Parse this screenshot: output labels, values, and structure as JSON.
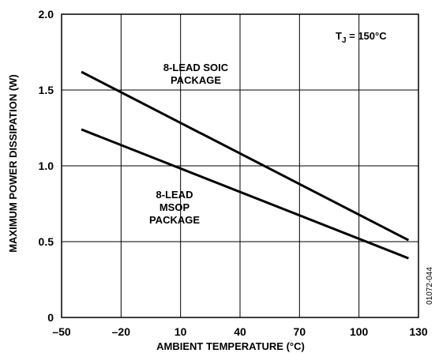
{
  "chart_data": {
    "type": "line",
    "xlabel": "AMBIENT TEMPERATURE (°C)",
    "ylabel": "MAXIMUM POWER DISSIPATION (W)",
    "xlim": [
      -50,
      130
    ],
    "ylim": [
      0,
      2.0
    ],
    "x_ticks": [
      -50,
      -20,
      10,
      40,
      70,
      100,
      130
    ],
    "x_tick_labels": [
      "–50",
      "–20",
      "10",
      "40",
      "70",
      "100",
      "130"
    ],
    "y_ticks": [
      0,
      0.5,
      1.0,
      1.5,
      2.0
    ],
    "y_tick_labels": [
      "0",
      "0.5",
      "1.0",
      "1.5",
      "2.0"
    ],
    "grid": true,
    "series": [
      {
        "name": "8-LEAD SOIC PACKAGE",
        "x": [
          -40,
          125
        ],
        "y": [
          1.62,
          0.51
        ]
      },
      {
        "name": "8-LEAD MSOP PACKAGE",
        "x": [
          -40,
          125
        ],
        "y": [
          1.24,
          0.39
        ]
      }
    ],
    "annotations": {
      "condition_main": "T",
      "condition_sub": "J",
      "condition_rest": " = 150°C",
      "soic_line1": "8-LEAD SOIC",
      "soic_line2": "PACKAGE",
      "msop_line1": "8-LEAD",
      "msop_line2": "MSOP",
      "msop_line3": "PACKAGE",
      "figure_code": "01072-044"
    },
    "colors": {
      "line": "#000000",
      "grid": "#000000"
    }
  }
}
